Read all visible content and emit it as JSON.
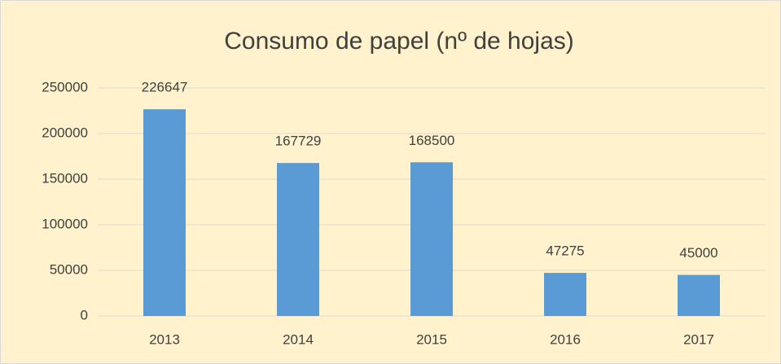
{
  "chart_data": {
    "type": "bar",
    "title": "Consumo de papel (nº de hojas)",
    "categories": [
      "2013",
      "2014",
      "2015",
      "2016",
      "2017"
    ],
    "values": [
      226647,
      167729,
      168500,
      47275,
      45000
    ],
    "color": "#5b9bd5",
    "ylim": [
      0,
      250000
    ],
    "yticks": [
      0,
      50000,
      100000,
      150000,
      200000,
      250000
    ],
    "grid": true
  }
}
